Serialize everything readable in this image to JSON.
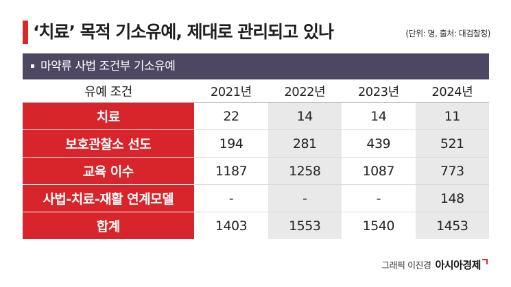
{
  "title": "‘치료’ 목적 기소유예, 제대로 관리되고 있나",
  "unit_note": "(단위: 명, 출처: 대검찰청)",
  "section_label": "마약류 사법 조건부 기소유예",
  "table": {
    "columns": [
      "유예 조건",
      "2021년",
      "2022년",
      "2023년",
      "2024년"
    ],
    "rows": [
      {
        "label": "치료",
        "values": [
          "22",
          "14",
          "14",
          "11"
        ]
      },
      {
        "label": "보호관찰소 선도",
        "values": [
          "194",
          "281",
          "439",
          "521"
        ]
      },
      {
        "label": "교육 이수",
        "values": [
          "1187",
          "1258",
          "1087",
          "773"
        ]
      },
      {
        "label": "사법-치료-재활 연계모델",
        "values": [
          "-",
          "-",
          "-",
          "148"
        ]
      },
      {
        "label": "합계",
        "values": [
          "1403",
          "1553",
          "1540",
          "1453"
        ]
      }
    ]
  },
  "credit": {
    "text": "그래픽 이진경",
    "brand": "아시아경제"
  },
  "colors": {
    "accent_red": "#d8242b",
    "band": "#4d4762",
    "shade": "#e9e9e9"
  }
}
